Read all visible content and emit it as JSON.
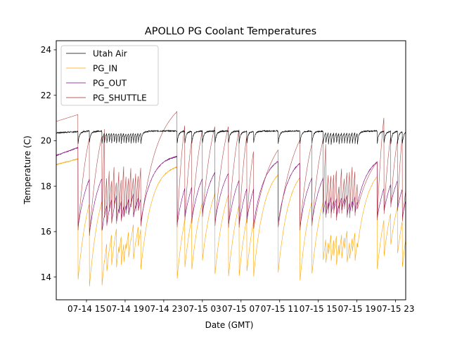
{
  "chart_data": {
    "type": "line",
    "title": "APOLLO PG Coolant Temperatures",
    "xlabel": "Date (GMT)",
    "ylabel": "Temperature (C)",
    "x_unit": "hours since 07-14 00:00 GMT",
    "xlim": [
      11.87,
      24.0,
      48.0
    ],
    "x_range_hours": [
      11.87,
      48.05
    ],
    "ylim": [
      13.0,
      24.4
    ],
    "yticks": [
      14,
      16,
      18,
      20,
      22,
      24
    ],
    "ytick_labels": [
      "14",
      "16",
      "18",
      "20",
      "22",
      "24"
    ],
    "xticks_hours": [
      15,
      19,
      23,
      27,
      31,
      35,
      39,
      43,
      47
    ],
    "xtick_labels": [
      "07-14 15",
      "07-14 19",
      "07-14 23",
      "07-15 03",
      "07-15 07",
      "07-15 11",
      "07-15 15",
      "07-15 19",
      "07-15 23"
    ],
    "grid": false,
    "legend": {
      "placement": "top-left",
      "entries": [
        {
          "name": "Utah Air",
          "color": "#000000"
        },
        {
          "name": "PG_IN",
          "color": "#ffa500"
        },
        {
          "name": "PG_OUT",
          "color": "#800080"
        },
        {
          "name": "PG_SHUTTLE",
          "color": "#a52a2a"
        }
      ]
    },
    "series": [
      {
        "name": "Utah Air",
        "color": "#000000",
        "baseline": 20.35,
        "dip": 19.75
      },
      {
        "name": "PG_IN",
        "color": "#ffa500",
        "start": 18.95,
        "min_typical": 14.4
      },
      {
        "name": "PG_OUT",
        "color": "#800080",
        "start": 19.35,
        "min_typical": 16.3
      },
      {
        "name": "PG_SHUTTLE",
        "color": "#a52a2a",
        "start": 20.85,
        "peak_typical": 21.8
      }
    ],
    "events_hours": [
      14.12,
      15.29,
      16.6,
      16.85,
      17.1,
      17.35,
      17.6,
      17.85,
      18.1,
      18.35,
      18.6,
      18.85,
      19.1,
      19.35,
      19.6,
      19.85,
      20.1,
      20.35,
      20.62,
      24.38,
      25.18,
      25.9,
      27.0,
      28.3,
      29.7,
      30.8,
      31.6,
      32.3,
      34.85,
      37.1,
      38.34,
      39.5,
      39.78,
      40.05,
      40.33,
      40.6,
      40.88,
      41.15,
      41.42,
      41.7,
      41.98,
      42.25,
      42.52,
      42.8,
      43.05,
      45.1,
      45.8,
      46.5,
      47.2,
      47.7
    ],
    "event_pg_in_min": [
      13.85,
      13.5,
      13.6,
      14.6,
      14.2,
      15.1,
      14.5,
      15.4,
      14.4,
      15.0,
      14.5,
      14.6,
      15.2,
      14.8,
      15.6,
      14.7,
      15.5,
      15.3,
      14.3,
      13.9,
      14.4,
      14.3,
      14.7,
      14.1,
      14.0,
      14.0,
      14.2,
      14.0,
      14.2,
      13.8,
      14.1,
      14.7,
      14.6,
      15.0,
      14.7,
      14.9,
      14.5,
      15.0,
      14.8,
      15.2,
      14.6,
      14.8,
      15.1,
      14.7,
      15.3,
      14.3,
      14.9,
      15.4,
      15.0,
      14.4
    ],
    "event_pg_out_min": [
      16.2,
      15.9,
      16.0,
      16.6,
      16.3,
      16.9,
      16.4,
      17.1,
      16.4,
      16.8,
      16.5,
      16.6,
      16.9,
      16.7,
      17.2,
      16.6,
      17.0,
      16.9,
      16.4,
      16.3,
      16.6,
      16.5,
      16.8,
      16.4,
      16.3,
      16.3,
      16.5,
      16.3,
      16.4,
      16.2,
      16.4,
      16.8,
      16.7,
      17.0,
      16.8,
      16.9,
      16.6,
      17.0,
      16.9,
      17.1,
      16.7,
      16.8,
      17.0,
      16.8,
      17.2,
      16.6,
      16.9,
      17.2,
      17.0,
      16.6
    ],
    "event_shuttle_peak": [
      21.2,
      21.4,
      22.4,
      19.2,
      19.7,
      18.9,
      19.9,
      18.7,
      19.6,
      19.0,
      19.9,
      19.3,
      19.0,
      19.8,
      18.9,
      19.5,
      19.1,
      19.7,
      21.6,
      22.0,
      21.1,
      21.6,
      21.7,
      21.8,
      21.7,
      21.4,
      20.5,
      20.2,
      20.9,
      20.9,
      21.1,
      21.2,
      19.4,
      19.2,
      19.3,
      19.5,
      18.7,
      19.6,
      19.0,
      19.3,
      19.6,
      19.8,
      19.4,
      18.8,
      19.6,
      22.4,
      21.2,
      20.9,
      21.3,
      21.2
    ]
  }
}
